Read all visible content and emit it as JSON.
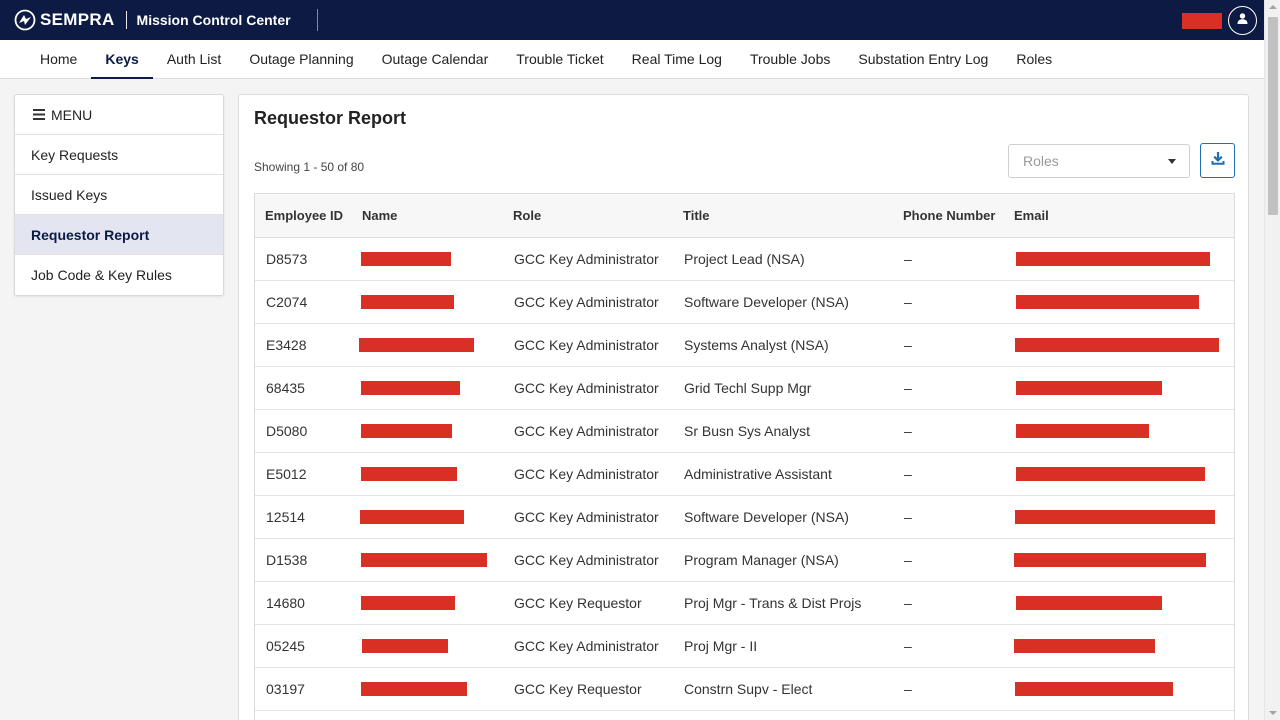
{
  "header": {
    "brand_name": "SEMPRA",
    "app_title": "Mission Control Center",
    "logo_icon": "sempra-logo-icon",
    "user_icon": "user-icon"
  },
  "nav": {
    "tabs": [
      {
        "label": "Home",
        "active": false
      },
      {
        "label": "Keys",
        "active": true
      },
      {
        "label": "Auth List",
        "active": false
      },
      {
        "label": "Outage Planning",
        "active": false
      },
      {
        "label": "Outage Calendar",
        "active": false
      },
      {
        "label": "Trouble Ticket",
        "active": false
      },
      {
        "label": "Real Time Log",
        "active": false
      },
      {
        "label": "Trouble Jobs",
        "active": false
      },
      {
        "label": "Substation Entry Log",
        "active": false
      },
      {
        "label": "Roles",
        "active": false
      }
    ]
  },
  "sidebar": {
    "menu_label": "MENU",
    "menu_icon": "hamburger-icon",
    "items": [
      {
        "label": "Key Requests",
        "active": false
      },
      {
        "label": "Issued Keys",
        "active": false
      },
      {
        "label": "Requestor Report",
        "active": true
      },
      {
        "label": "Job Code & Key Rules",
        "active": false
      }
    ]
  },
  "main": {
    "title": "Requestor Report",
    "showing": "Showing 1 - 50 of 80",
    "roles_placeholder": "Roles",
    "download_icon": "download-icon",
    "table": {
      "columns": [
        "Employee ID",
        "Name",
        "Role",
        "Title",
        "Phone Number",
        "Email"
      ],
      "rows": [
        {
          "id": "D8573",
          "role": "GCC Key Administrator",
          "title": "Project Lead (NSA)",
          "phone": "–"
        },
        {
          "id": "C2074",
          "role": "GCC Key Administrator",
          "title": "Software Developer (NSA)",
          "phone": "–"
        },
        {
          "id": "E3428",
          "role": "GCC Key Administrator",
          "title": "Systems Analyst (NSA)",
          "phone": "–"
        },
        {
          "id": "68435",
          "role": "GCC Key Administrator",
          "title": "Grid Techl Supp Mgr",
          "phone": "–"
        },
        {
          "id": "D5080",
          "role": "GCC Key Administrator",
          "title": "Sr Busn Sys Analyst",
          "phone": "–"
        },
        {
          "id": "E5012",
          "role": "GCC Key Administrator",
          "title": "Administrative Assistant",
          "phone": "–"
        },
        {
          "id": "12514",
          "role": "GCC Key Administrator",
          "title": "Software Developer (NSA)",
          "phone": "–"
        },
        {
          "id": "D1538",
          "role": "GCC Key Administrator",
          "title": "Program Manager (NSA)",
          "phone": "–"
        },
        {
          "id": "14680",
          "role": "GCC Key Requestor",
          "title": "Proj Mgr - Trans & Dist Projs",
          "phone": "–"
        },
        {
          "id": "05245",
          "role": "GCC Key Administrator",
          "title": "Proj Mgr - II",
          "phone": "–"
        },
        {
          "id": "03197",
          "role": "GCC Key Requestor",
          "title": "Constrn Supv - Elect",
          "phone": "–"
        },
        {
          "id": "",
          "role": "",
          "title": "",
          "phone": ""
        }
      ]
    }
  },
  "colors": {
    "header_bg": "#0c1a44",
    "accent": "#0c1a44",
    "redaction": "#d93025",
    "sidebar_active_bg": "#e3e6f1",
    "download_border": "#1f6fb0"
  }
}
